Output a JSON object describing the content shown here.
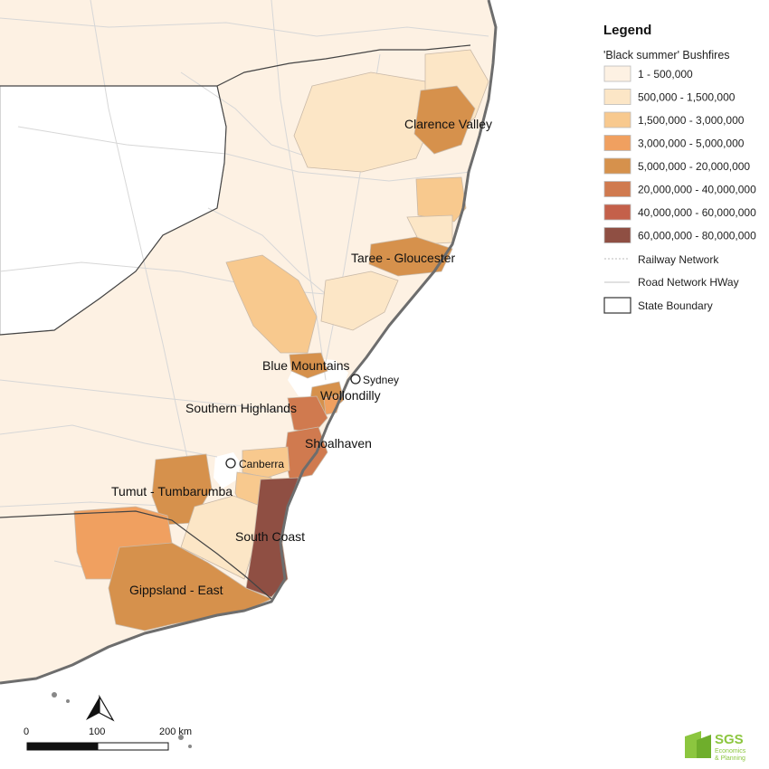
{
  "legend": {
    "title": "Legend",
    "subtitle": "'Black summer' Bushfires",
    "classes": [
      {
        "label": "1 - 500,000",
        "color": "#fdf1e3"
      },
      {
        "label": "500,000 - 1,500,000",
        "color": "#fce6c6"
      },
      {
        "label": "1,500,000 - 3,000,000",
        "color": "#f8c98e"
      },
      {
        "label": "3,000,000 - 5,000,000",
        "color": "#f0a060"
      },
      {
        "label": "5,000,000 - 20,000,000",
        "color": "#d6914c"
      },
      {
        "label": "20,000,000 - 40,000,000",
        "color": "#d07a4f"
      },
      {
        "label": "40,000,000 - 60,000,000",
        "color": "#c4604a"
      },
      {
        "label": "60,000,000 - 80,000,000",
        "color": "#8f4f43"
      }
    ],
    "lines": [
      {
        "label": "Railway Network"
      },
      {
        "label": "Road Network HWay"
      },
      {
        "label": "State Boundary"
      }
    ]
  },
  "regions": [
    {
      "name": "Clarence Valley",
      "class": 4
    },
    {
      "name": "Taree - Gloucester",
      "class": 4
    },
    {
      "name": "Blue Mountains",
      "class": 4
    },
    {
      "name": "Wollondilly",
      "class": 4
    },
    {
      "name": "Southern Highlands",
      "class": 5
    },
    {
      "name": "Shoalhaven",
      "class": 5
    },
    {
      "name": "Tumut - Tumbarumba",
      "class": 4
    },
    {
      "name": "South Coast",
      "class": 7
    },
    {
      "name": "Gippsland - East",
      "class": 4
    }
  ],
  "cities": [
    {
      "name": "Sydney"
    },
    {
      "name": "Canberra"
    }
  ],
  "scalebar": {
    "labels": [
      "0",
      "100",
      "200 km"
    ]
  },
  "logo": {
    "name": "SGS",
    "subtitle_line1": "Economics",
    "subtitle_line2": "& Planning"
  }
}
